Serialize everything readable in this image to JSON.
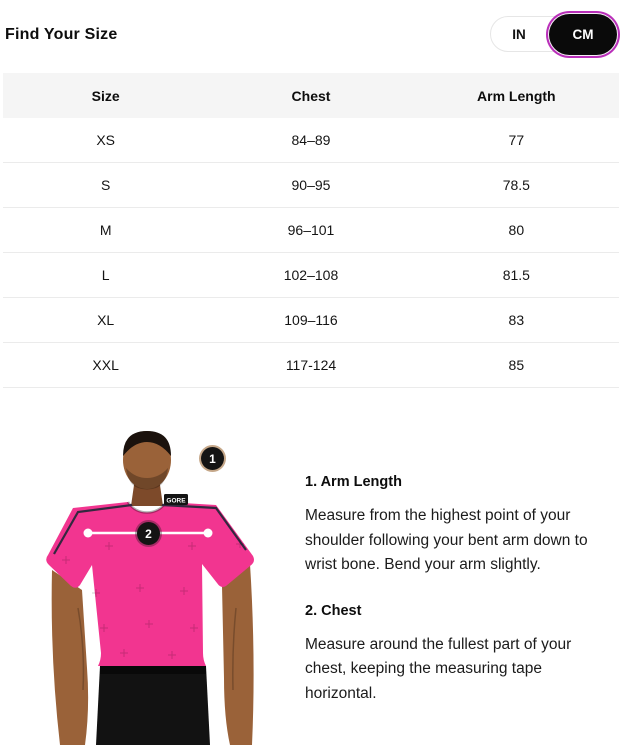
{
  "header": {
    "title": "Find Your Size"
  },
  "unit_toggle": {
    "accent_color": "#b92fb9",
    "options": [
      {
        "label": "IN",
        "selected": false
      },
      {
        "label": "CM",
        "selected": true
      }
    ]
  },
  "table": {
    "columns": [
      "Size",
      "Chest",
      "Arm Length"
    ],
    "rows": [
      {
        "size": "XS",
        "chest": "84–89",
        "arm_length": "77"
      },
      {
        "size": "S",
        "chest": "90–95",
        "arm_length": "78.5"
      },
      {
        "size": "M",
        "chest": "96–101",
        "arm_length": "80"
      },
      {
        "size": "L",
        "chest": "102–108",
        "arm_length": "81.5"
      },
      {
        "size": "XL",
        "chest": "109–116",
        "arm_length": "83"
      },
      {
        "size": "XXL",
        "chest": "117-124",
        "arm_length": "85"
      }
    ]
  },
  "figure": {
    "shirt_logo": "GORE",
    "callouts": [
      {
        "number": "1"
      },
      {
        "number": "2"
      }
    ],
    "colors": {
      "shirt": "#f23590",
      "skin": "#9a6239",
      "skin_dark": "#7d4a2a",
      "shorts": "#121212"
    }
  },
  "guide": {
    "items": [
      {
        "title": "1. Arm Length",
        "body": "Measure from the highest point of your shoulder following your bent arm down to wrist bone. Bend your arm slightly."
      },
      {
        "title": "2. Chest",
        "body": "Measure around the fullest part of your chest, keeping the measuring tape horizontal."
      }
    ]
  }
}
